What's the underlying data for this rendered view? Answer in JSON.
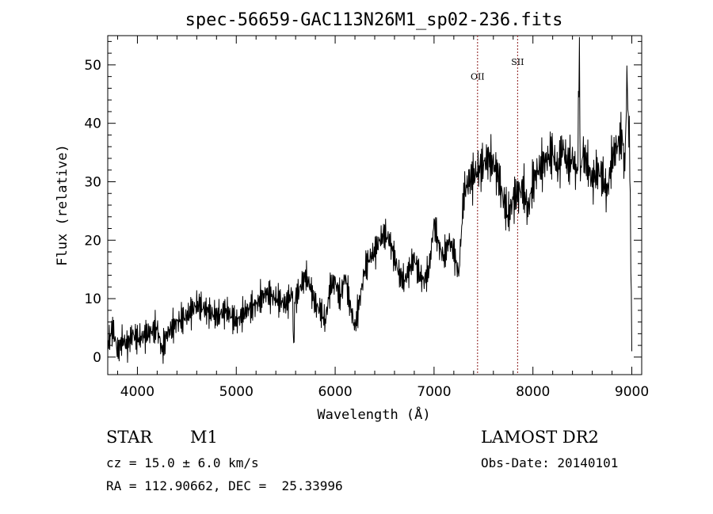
{
  "chart_data": {
    "type": "line",
    "title": "spec-56659-GAC113N26M1_sp02-236.fits",
    "xlabel": "Wavelength (Å)",
    "ylabel": "Flux (relative)",
    "xlim": [
      3700,
      9100
    ],
    "ylim": [
      -3,
      55
    ],
    "x_ticks": [
      4000,
      5000,
      6000,
      7000,
      8000,
      9000
    ],
    "y_ticks": [
      0,
      10,
      20,
      30,
      40,
      50
    ],
    "x_tick_labels": [
      "4000",
      "5000",
      "6000",
      "7000",
      "8000",
      "9000"
    ],
    "y_tick_labels": [
      "0",
      "10",
      "20",
      "30",
      "40",
      "50"
    ],
    "grid": false,
    "series": [
      {
        "color": "#000000",
        "x": [
          3700,
          3750,
          3800,
          3850,
          3900,
          3950,
          4000,
          4100,
          4200,
          4250,
          4300,
          4400,
          4500,
          4600,
          4700,
          4800,
          4900,
          5000,
          5100,
          5200,
          5300,
          5400,
          5500,
          5570,
          5580,
          5590,
          5600,
          5700,
          5750,
          5800,
          5850,
          5900,
          5950,
          6000,
          6050,
          6100,
          6150,
          6200,
          6250,
          6300,
          6350,
          6400,
          6450,
          6500,
          6550,
          6600,
          6650,
          6700,
          6750,
          6800,
          6850,
          6900,
          6950,
          7000,
          7050,
          7100,
          7150,
          7200,
          7250,
          7300,
          7350,
          7400,
          7450,
          7500,
          7550,
          7600,
          7650,
          7700,
          7750,
          7800,
          7850,
          7900,
          7950,
          8000,
          8050,
          8100,
          8150,
          8200,
          8250,
          8300,
          8350,
          8400,
          8450,
          8470,
          8480,
          8500,
          8550,
          8600,
          8650,
          8700,
          8750,
          8800,
          8850,
          8900,
          8930,
          8950,
          8980,
          9000
        ],
        "y": [
          2,
          5,
          1,
          3,
          2,
          4,
          3,
          4,
          5,
          1,
          4,
          6,
          7,
          9,
          8,
          7,
          8,
          6,
          8,
          9,
          11,
          10,
          9,
          11,
          0,
          9,
          10,
          14,
          12,
          9,
          8,
          6,
          12,
          13,
          10,
          14,
          9,
          5,
          10,
          15,
          17,
          18,
          20,
          21,
          20,
          17,
          14,
          13,
          15,
          17,
          14,
          13,
          15,
          23,
          19,
          17,
          20,
          18,
          14,
          28,
          30,
          31,
          32,
          33,
          34,
          33,
          31,
          27,
          24,
          27,
          28,
          29,
          25,
          30,
          32,
          33,
          34,
          35,
          32,
          36,
          33,
          34,
          31,
          52,
          30,
          35,
          33,
          30,
          32,
          31,
          28,
          34,
          36,
          38,
          32,
          48,
          34,
          1
        ]
      }
    ],
    "annotations": [
      {
        "label": "OII",
        "x": 7440,
        "y": 47.5,
        "color": "#8b1a1a"
      },
      {
        "label": "SII",
        "x": 7845,
        "y": 50,
        "color": "#8b1a1a"
      }
    ]
  },
  "info": {
    "class": "STAR",
    "subclass": "M1",
    "cz": "cz = 15.0 ± 6.0 km/s",
    "radec": "RA = 112.90662, DEC =  25.33996",
    "survey": "LAMOST DR2",
    "obsdate": "Obs-Date: 20140101"
  }
}
